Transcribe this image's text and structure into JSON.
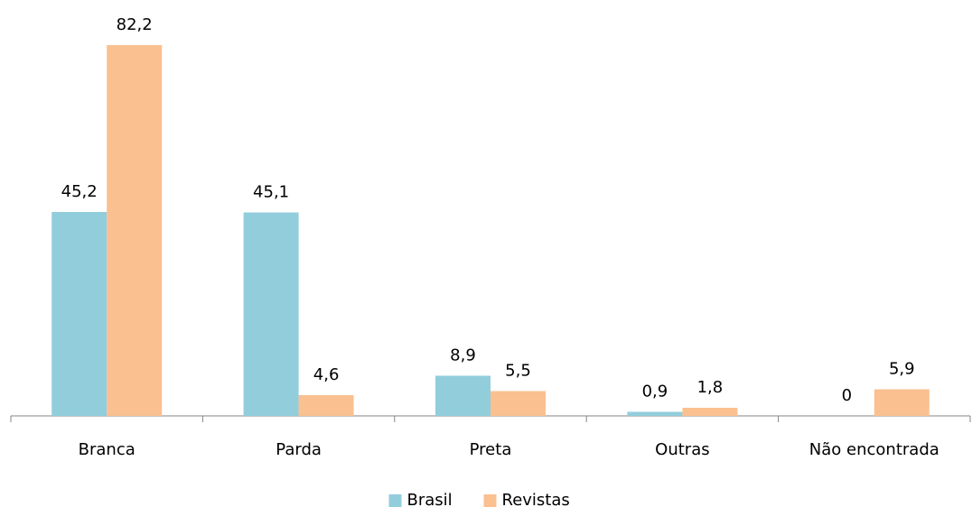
{
  "chart_data": {
    "type": "bar",
    "categories": [
      "Branca",
      "Parda",
      "Preta",
      "Outras",
      "Não encontrada"
    ],
    "series": [
      {
        "name": "Brasil",
        "color": "#92cddc",
        "values": [
          45.2,
          45.1,
          8.9,
          0.9,
          0
        ],
        "value_labels": [
          "45,2",
          "45,1",
          "8,9",
          "0,9",
          "0"
        ]
      },
      {
        "name": "Revistas",
        "color": "#fac090",
        "values": [
          82.2,
          4.6,
          5.5,
          1.8,
          5.9
        ],
        "value_labels": [
          "82,2",
          "4,6",
          "5,5",
          "1,8",
          "5,9"
        ]
      }
    ],
    "ylim": [
      0,
      90
    ],
    "legend": "bottom"
  }
}
